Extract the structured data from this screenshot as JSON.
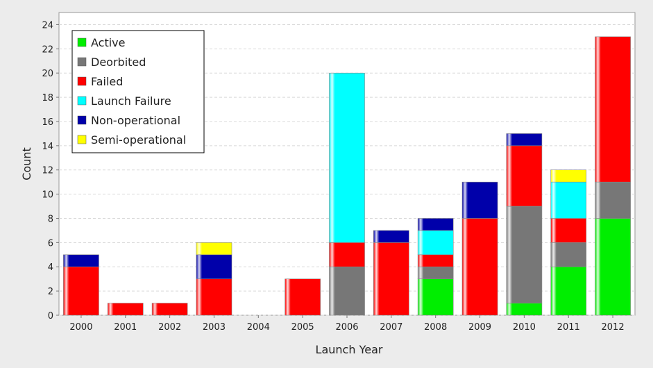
{
  "chart_data": {
    "type": "bar",
    "stacked": true,
    "xlabel": "Launch Year",
    "ylabel": "Count",
    "ylim": [
      0,
      25
    ],
    "yticks": [
      0,
      2,
      4,
      6,
      8,
      10,
      12,
      14,
      16,
      18,
      20,
      22,
      24
    ],
    "grid": true,
    "legend_position": "top-left",
    "categories": [
      "2000",
      "2001",
      "2002",
      "2003",
      "2004",
      "2005",
      "2006",
      "2007",
      "2008",
      "2009",
      "2010",
      "2011",
      "2012"
    ],
    "series": [
      {
        "name": "Active",
        "color": "#00ee00",
        "values": [
          0,
          0,
          0,
          0,
          0,
          0,
          0,
          0,
          3,
          0,
          1,
          4,
          8
        ]
      },
      {
        "name": "Deorbited",
        "color": "#777777",
        "values": [
          0,
          0,
          0,
          0,
          0,
          0,
          4,
          0,
          1,
          0,
          8,
          2,
          3
        ]
      },
      {
        "name": "Failed",
        "color": "#ff0000",
        "values": [
          4,
          1,
          1,
          3,
          0,
          3,
          2,
          6,
          1,
          8,
          5,
          2,
          12
        ]
      },
      {
        "name": "Launch Failure",
        "color": "#00ffff",
        "values": [
          0,
          0,
          0,
          0,
          0,
          0,
          14,
          0,
          2,
          0,
          0,
          3,
          0
        ]
      },
      {
        "name": "Non-operational",
        "color": "#0000aa",
        "values": [
          1,
          0,
          0,
          2,
          0,
          0,
          0,
          1,
          1,
          3,
          1,
          0,
          0
        ]
      },
      {
        "name": "Semi-operational",
        "color": "#ffff00",
        "values": [
          0,
          0,
          0,
          1,
          0,
          0,
          0,
          0,
          0,
          0,
          0,
          1,
          0
        ]
      }
    ]
  }
}
